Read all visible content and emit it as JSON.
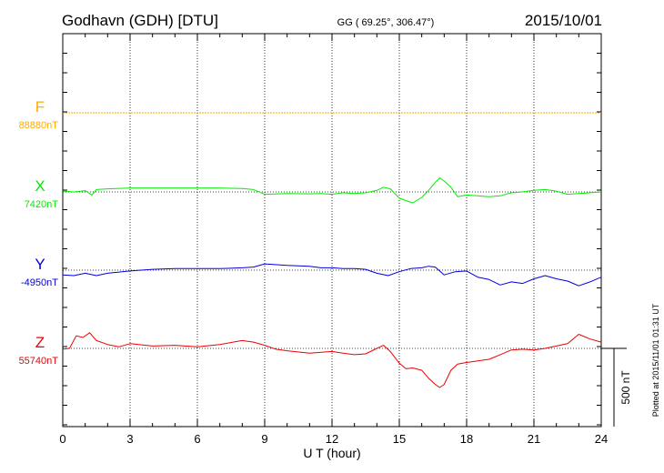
{
  "header": {
    "station": "Godhavn (GDH)  [DTU]",
    "coords": "GG ( 69.25°, 306.47°)",
    "date": "2015/10/01"
  },
  "side_note": "Plotted at 2015/11/01 01:31 UT",
  "scale_label": "500 nT",
  "colors": {
    "F": "#ffaa00",
    "X": "#00ee00",
    "Y": "#0000dd",
    "Z": "#ee0000"
  },
  "chart_data": {
    "type": "line",
    "xlabel": "U T (hour)",
    "xlim": [
      0,
      24
    ],
    "xticks": [
      "0",
      "3",
      "6",
      "9",
      "12",
      "15",
      "18",
      "21",
      "24"
    ],
    "grid": true,
    "scale_bar_nT": 500,
    "series": [
      {
        "name": "F",
        "baseline": "88880nT",
        "color": "#ffaa00",
        "x": [
          0,
          24
        ],
        "y": [
          0,
          0
        ]
      },
      {
        "name": "X",
        "baseline": "7420nT",
        "color": "#00ee00",
        "x": [
          0,
          0.5,
          1,
          1.3,
          1.5,
          2,
          3,
          4,
          5,
          6,
          7,
          8,
          8.5,
          9,
          10,
          11,
          11.5,
          12,
          12.5,
          13,
          13.5,
          14,
          14.3,
          14.6,
          15,
          15.3,
          15.6,
          16,
          16.3,
          16.6,
          16.8,
          17,
          17.3,
          17.6,
          18,
          18.5,
          19,
          19.5,
          20,
          20.5,
          21,
          21.5,
          22,
          22.5,
          23,
          23.5,
          24
        ],
        "y": [
          5,
          0,
          8,
          -20,
          15,
          20,
          25,
          25,
          25,
          25,
          25,
          22,
          15,
          -15,
          -10,
          -12,
          -10,
          -15,
          -5,
          -10,
          -5,
          10,
          30,
          20,
          -40,
          -55,
          -70,
          -35,
          10,
          60,
          90,
          70,
          30,
          -30,
          -20,
          -25,
          -30,
          -25,
          -5,
          0,
          10,
          15,
          5,
          -15,
          -10,
          -5,
          0
        ]
      },
      {
        "name": "Y",
        "baseline": "-4950nT",
        "color": "#0000dd",
        "x": [
          0,
          0.5,
          1,
          1.5,
          2,
          3,
          4,
          5,
          6,
          7,
          8,
          8.5,
          9,
          10,
          11,
          11.5,
          12,
          12.5,
          13,
          13.5,
          14,
          14.5,
          15,
          15.5,
          16,
          16.3,
          16.6,
          17,
          17.5,
          18,
          18.5,
          19,
          19.5,
          20,
          20.5,
          21,
          21.5,
          22,
          22.5,
          23,
          23.5,
          24
        ],
        "y": [
          -30,
          -35,
          -20,
          -35,
          -20,
          -5,
          5,
          10,
          10,
          10,
          15,
          20,
          40,
          30,
          25,
          15,
          15,
          10,
          10,
          5,
          -20,
          -35,
          -10,
          10,
          15,
          25,
          20,
          -30,
          -10,
          -5,
          -45,
          -60,
          -95,
          -75,
          -85,
          -55,
          -35,
          -55,
          -70,
          -100,
          -75,
          -45
        ]
      },
      {
        "name": "Z",
        "baseline": "55740nT",
        "color": "#ee0000",
        "x": [
          0,
          0.3,
          0.6,
          0.9,
          1.2,
          1.5,
          2,
          2.5,
          3,
          4,
          5,
          6,
          7,
          8,
          8.5,
          9,
          9.5,
          10,
          11,
          12,
          12.5,
          13,
          13.5,
          14,
          14.3,
          14.6,
          15,
          15.3,
          15.6,
          16,
          16.3,
          16.6,
          16.8,
          17,
          17.3,
          17.6,
          18,
          18.5,
          19,
          19.5,
          20,
          20.5,
          21,
          21.5,
          22,
          22.5,
          23,
          23.5,
          24
        ],
        "y": [
          -5,
          0,
          80,
          70,
          100,
          50,
          25,
          10,
          30,
          15,
          20,
          10,
          25,
          50,
          40,
          20,
          -5,
          -15,
          -30,
          -20,
          -30,
          -40,
          -35,
          0,
          20,
          -20,
          -95,
          -130,
          -125,
          -140,
          -190,
          -230,
          -250,
          -230,
          -140,
          -100,
          -90,
          -80,
          -70,
          -40,
          -10,
          -5,
          -10,
          0,
          15,
          30,
          90,
          60,
          40
        ]
      }
    ]
  }
}
